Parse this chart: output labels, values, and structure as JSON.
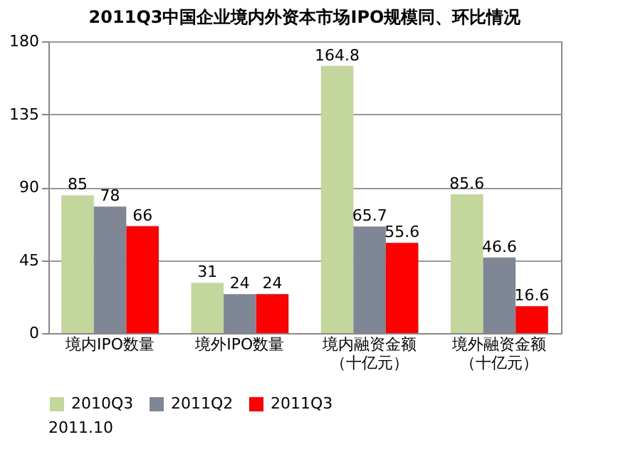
{
  "chart_data": {
    "type": "bar",
    "title": "2011Q3中国企业境内外资本市场IPO规模同、环比情况",
    "categories": [
      "境内IPO数量",
      "境外IPO数量",
      "境内融资金额（十亿元）",
      "境外融资金额（十亿元）"
    ],
    "series": [
      {
        "name": "2010Q3",
        "color": "#c3d69b",
        "values": [
          85,
          31,
          164.8,
          85.6
        ]
      },
      {
        "name": "2011Q2",
        "color": "#7f8797",
        "values": [
          78,
          24,
          65.7,
          46.6
        ]
      },
      {
        "name": "2011Q3",
        "color": "#ff0000",
        "values": [
          66,
          24,
          55.6,
          16.6
        ]
      }
    ],
    "ylim": [
      0,
      180
    ],
    "yticks": [
      0,
      45,
      90,
      135,
      180
    ],
    "grid": "y",
    "legend": "bottom",
    "data_labels": true,
    "annotations": [
      "2011.10"
    ]
  }
}
